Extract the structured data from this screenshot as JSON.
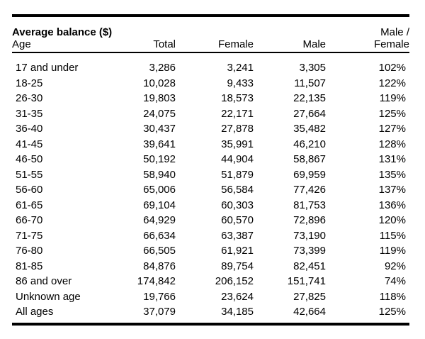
{
  "table": {
    "title": "Average balance ($)",
    "headers": {
      "age": "Age",
      "total": "Total",
      "female": "Female",
      "male": "Male",
      "ratio_line1": "Male /",
      "ratio_line2": "Female"
    },
    "rows": [
      {
        "age": "17 and under",
        "total": "3,286",
        "female": "3,241",
        "male": "3,305",
        "male_female": "102%"
      },
      {
        "age": "18-25",
        "total": "10,028",
        "female": "9,433",
        "male": "11,507",
        "male_female": "122%"
      },
      {
        "age": "26-30",
        "total": "19,803",
        "female": "18,573",
        "male": "22,135",
        "male_female": "119%"
      },
      {
        "age": "31-35",
        "total": "24,075",
        "female": "22,171",
        "male": "27,664",
        "male_female": "125%"
      },
      {
        "age": "36-40",
        "total": "30,437",
        "female": "27,878",
        "male": "35,482",
        "male_female": "127%"
      },
      {
        "age": "41-45",
        "total": "39,641",
        "female": "35,991",
        "male": "46,210",
        "male_female": "128%"
      },
      {
        "age": "46-50",
        "total": "50,192",
        "female": "44,904",
        "male": "58,867",
        "male_female": "131%"
      },
      {
        "age": "51-55",
        "total": "58,940",
        "female": "51,879",
        "male": "69,959",
        "male_female": "135%"
      },
      {
        "age": "56-60",
        "total": "65,006",
        "female": "56,584",
        "male": "77,426",
        "male_female": "137%"
      },
      {
        "age": "61-65",
        "total": "69,104",
        "female": "60,303",
        "male": "81,753",
        "male_female": "136%"
      },
      {
        "age": "66-70",
        "total": "64,929",
        "female": "60,570",
        "male": "72,896",
        "male_female": "120%"
      },
      {
        "age": "71-75",
        "total": "66,634",
        "female": "63,387",
        "male": "73,190",
        "male_female": "115%"
      },
      {
        "age": "76-80",
        "total": "66,505",
        "female": "61,921",
        "male": "73,399",
        "male_female": "119%"
      },
      {
        "age": "81-85",
        "total": "84,876",
        "female": "89,754",
        "male": "82,451",
        "male_female": "92%"
      },
      {
        "age": "86 and over",
        "total": "174,842",
        "female": "206,152",
        "male": "151,741",
        "male_female": "74%"
      },
      {
        "age": "Unknown age",
        "total": "19,766",
        "female": "23,624",
        "male": "27,825",
        "male_female": "118%"
      },
      {
        "age": "All ages",
        "total": "37,079",
        "female": "34,185",
        "male": "42,664",
        "male_female": "125%"
      }
    ]
  },
  "colors": {
    "text": "#000000",
    "rule": "#000000",
    "background": "#ffffff"
  }
}
